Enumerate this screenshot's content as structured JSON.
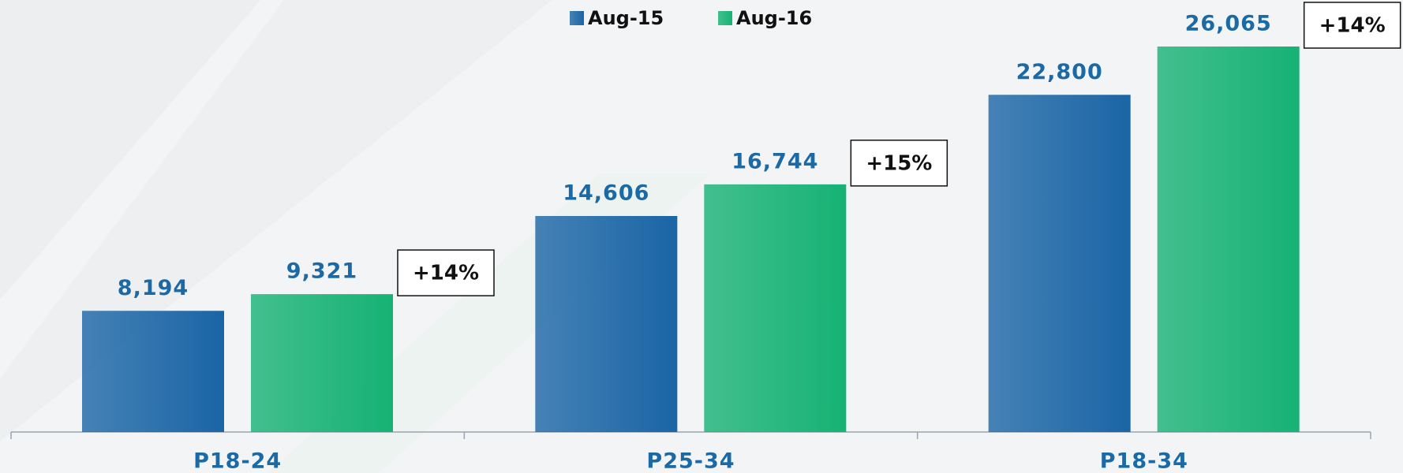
{
  "chart_data": {
    "type": "bar",
    "categories": [
      "P18-24",
      "P25-34",
      "P18-34"
    ],
    "series": [
      {
        "name": "Aug-15",
        "color": "#1a65a6",
        "values": [
          8194,
          14606,
          22800
        ],
        "value_labels": [
          "8,194",
          "14,606",
          "22,800"
        ]
      },
      {
        "name": "Aug-16",
        "color": "#16b274",
        "values": [
          9321,
          16744,
          26065
        ],
        "value_labels": [
          "9,321",
          "16,744",
          "26,065"
        ]
      }
    ],
    "annotations": [
      "+14%",
      "+15%",
      "+14%"
    ],
    "legend": "top"
  }
}
